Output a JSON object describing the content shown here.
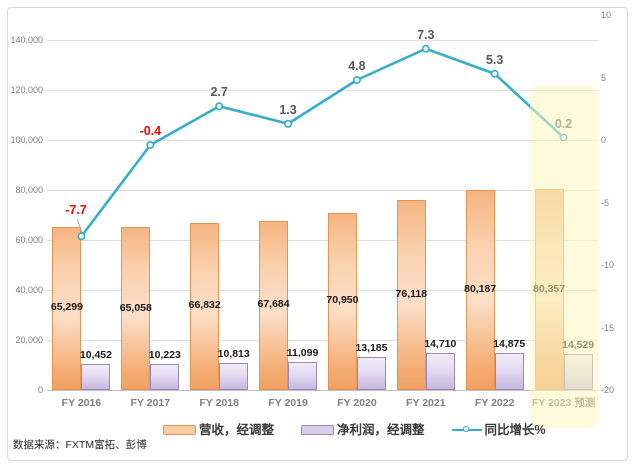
{
  "source": {
    "label": "数据来源：FXTM富拓、彭博"
  },
  "legend": {
    "items": [
      {
        "label": "营收，经调整",
        "swatch": "bar-orange"
      },
      {
        "label": "净利润，经调整",
        "swatch": "bar-purple"
      },
      {
        "label": "同比增长%",
        "swatch": "line"
      }
    ]
  },
  "colors": {
    "revenue_border": "#e89352",
    "revenue_fill": "#f9c99c",
    "profit_border": "#9c86c0",
    "profit_fill": "#d9cdeb",
    "growth_line": "#35aecb",
    "negative_label": "#ff0000",
    "line_label": "#595959",
    "highlight_band": "#fcf7be",
    "gridline": "#dedede"
  },
  "chart_data": {
    "type": "bar",
    "subtype": "clustered-bars-with-line",
    "title": "",
    "categories": [
      "FY 2016",
      "FY 2017",
      "FY 2018",
      "FY 2019",
      "FY 2020",
      "FY 2021",
      "FY 2022",
      "FY 2023 预测"
    ],
    "series": [
      {
        "name": "营收，经调整",
        "type": "bar",
        "axis": "left",
        "values": [
          65299,
          65058,
          66832,
          67684,
          70950,
          76118,
          80187,
          80357
        ],
        "labels": [
          "65,299",
          "65,058",
          "66,832",
          "67,684",
          "70,950",
          "76,118",
          "80,187",
          "80,357"
        ]
      },
      {
        "name": "净利润，经调整",
        "type": "bar",
        "axis": "left",
        "values": [
          10452,
          10223,
          10813,
          11099,
          13185,
          14710,
          14875,
          14529
        ],
        "labels": [
          "10,452",
          "10,223",
          "10,813",
          "11,099",
          "13,185",
          "14,710",
          "14,875",
          "14,529"
        ]
      },
      {
        "name": "同比增长%",
        "type": "line",
        "axis": "right",
        "values": [
          -7.7,
          -0.4,
          2.7,
          1.3,
          4.8,
          7.3,
          5.3,
          0.2
        ],
        "labels": [
          "-7.7",
          "-0.4",
          "2.7",
          "1.3",
          "4.8",
          "7.3",
          "5.3",
          "0.2"
        ]
      }
    ],
    "left_axis": {
      "min": 0,
      "max": 150000,
      "ticks": [
        {
          "label": "0",
          "value": 0
        },
        {
          "label": "20,000",
          "value": 20000
        },
        {
          "label": "40,000",
          "value": 40000
        },
        {
          "label": "60,000",
          "value": 60000
        },
        {
          "label": "80,000",
          "value": 80000
        },
        {
          "label": "100,000",
          "value": 100000
        },
        {
          "label": "120,000",
          "value": 120000
        },
        {
          "label": "140,000",
          "value": 140000
        }
      ]
    },
    "right_axis": {
      "min": -20,
      "max": 10,
      "ticks": [
        {
          "label": "10",
          "value": 10
        },
        {
          "label": "5",
          "value": 5
        },
        {
          "label": "0",
          "value": 0
        },
        {
          "label": "-5",
          "value": -5
        },
        {
          "label": "-10",
          "value": -10
        },
        {
          "label": "-15",
          "value": -15
        },
        {
          "label": "-20",
          "value": -20
        }
      ]
    },
    "grid": "horizontal",
    "legend_position": "bottom",
    "highlight": {
      "category_index": 7
    }
  }
}
